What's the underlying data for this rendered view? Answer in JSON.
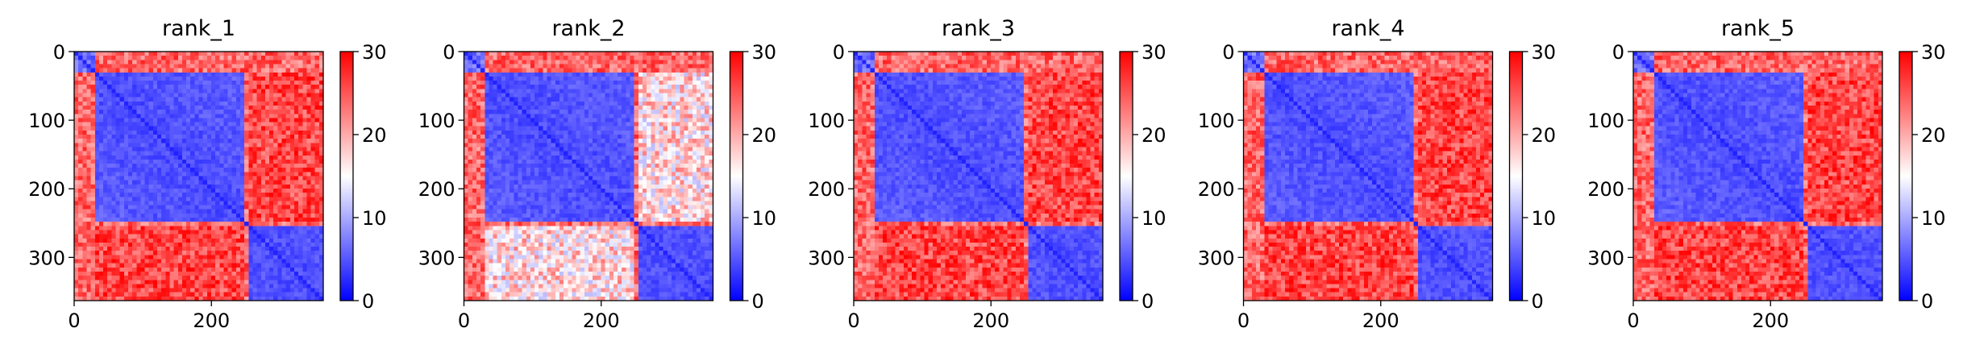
{
  "chart_data": [
    {
      "type": "heatmap",
      "title": "rank_1",
      "inter_domain_level": "high",
      "xlim": [
        0,
        363
      ],
      "ylim": [
        363,
        0
      ],
      "xticks": [
        0,
        200
      ],
      "yticks": [
        0,
        100,
        200,
        300
      ],
      "colorbar": {
        "min": 0,
        "max": 30,
        "ticks": [
          0,
          10,
          20,
          30
        ]
      }
    },
    {
      "type": "heatmap",
      "title": "rank_2",
      "inter_domain_level": "medium",
      "xlim": [
        0,
        363
      ],
      "ylim": [
        363,
        0
      ],
      "xticks": [
        0,
        200
      ],
      "yticks": [
        0,
        100,
        200,
        300
      ],
      "colorbar": {
        "min": 0,
        "max": 30,
        "ticks": [
          0,
          10,
          20,
          30
        ]
      }
    },
    {
      "type": "heatmap",
      "title": "rank_3",
      "inter_domain_level": "high",
      "xlim": [
        0,
        363
      ],
      "ylim": [
        363,
        0
      ],
      "xticks": [
        0,
        200
      ],
      "yticks": [
        0,
        100,
        200,
        300
      ],
      "colorbar": {
        "min": 0,
        "max": 30,
        "ticks": [
          0,
          10,
          20,
          30
        ]
      }
    },
    {
      "type": "heatmap",
      "title": "rank_4",
      "inter_domain_level": "high",
      "xlim": [
        0,
        363
      ],
      "ylim": [
        363,
        0
      ],
      "xticks": [
        0,
        200
      ],
      "yticks": [
        0,
        100,
        200,
        300
      ],
      "colorbar": {
        "min": 0,
        "max": 30,
        "ticks": [
          0,
          10,
          20,
          30
        ]
      }
    },
    {
      "type": "heatmap",
      "title": "rank_5",
      "inter_domain_level": "high",
      "xlim": [
        0,
        363
      ],
      "ylim": [
        363,
        0
      ],
      "xticks": [
        0,
        200
      ],
      "yticks": [
        0,
        100,
        200,
        300
      ],
      "colorbar": {
        "min": 0,
        "max": 30,
        "ticks": [
          0,
          10,
          20,
          30
        ]
      }
    }
  ],
  "colormap": {
    "low": "#0000ff",
    "mid": "#ffffff",
    "high": "#ff0000"
  }
}
